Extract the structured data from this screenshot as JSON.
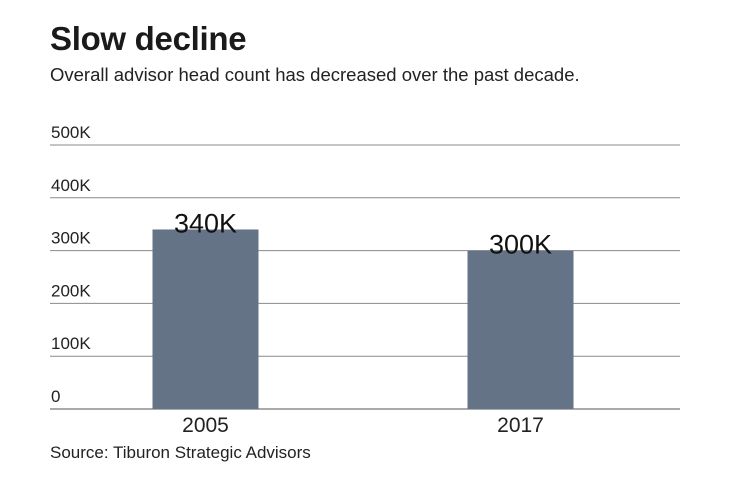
{
  "chart_data": {
    "type": "bar",
    "title": "Slow decline",
    "subtitle": "Overall advisor head count has decreased over the past decade.",
    "source": "Source: Tiburon Strategic Advisors",
    "categories": [
      "2005",
      "2017"
    ],
    "values": [
      340000,
      300000
    ],
    "data_labels": [
      "340K",
      "300K"
    ],
    "yticks": [
      0,
      100000,
      200000,
      300000,
      400000,
      500000
    ],
    "ytick_labels": [
      "0",
      "100K",
      "200K",
      "300K",
      "400K",
      "500K"
    ],
    "ylim": [
      0,
      500000
    ],
    "xlabel": "",
    "ylabel": "",
    "grid": true,
    "bar_color": "#647386",
    "grid_color": "#8a8a8a"
  }
}
